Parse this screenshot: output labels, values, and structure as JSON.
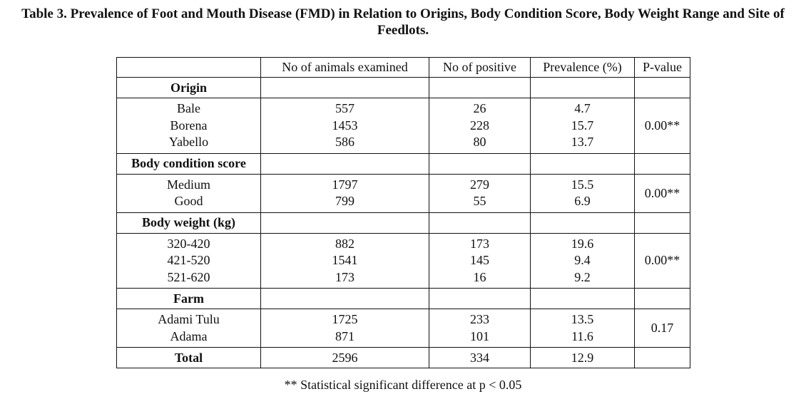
{
  "caption": {
    "line1": "Table 3. Prevalence of Foot and Mouth Disease (FMD) in Relation to Origins, Body Condition Score, Body Weight Range and Site of",
    "line2": "Feedlots."
  },
  "header": {
    "blank": "",
    "col1": "No of animals examined",
    "col2": "No of positive",
    "col3": "Prevalence (%)",
    "col4": "P-value"
  },
  "origin": {
    "title": "Origin",
    "pvalue": "0.00**",
    "rows": [
      {
        "label": "Bale",
        "examined": "557",
        "positive": "26",
        "prevalence": "4.7"
      },
      {
        "label": "Borena",
        "examined": "1453",
        "positive": "228",
        "prevalence": "15.7"
      },
      {
        "label": "Yabello",
        "examined": "586",
        "positive": "80",
        "prevalence": "13.7"
      }
    ]
  },
  "bcs": {
    "title": "Body condition score",
    "pvalue": "0.00**",
    "rows": [
      {
        "label": "Medium",
        "examined": "1797",
        "positive": "279",
        "prevalence": "15.5"
      },
      {
        "label": "Good",
        "examined": "799",
        "positive": "55",
        "prevalence": "6.9"
      }
    ]
  },
  "weight": {
    "title": "Body weight (kg)",
    "pvalue": "0.00**",
    "rows": [
      {
        "label": "320-420",
        "examined": "882",
        "positive": "173",
        "prevalence": "19.6"
      },
      {
        "label": "421-520",
        "examined": "1541",
        "positive": "145",
        "prevalence": "9.4"
      },
      {
        "label": "521-620",
        "examined": "173",
        "positive": "16",
        "prevalence": "9.2"
      }
    ]
  },
  "farm": {
    "title": "Farm",
    "pvalue": "0.17",
    "rows": [
      {
        "label": "Adami Tulu",
        "examined": "1725",
        "positive": "233",
        "prevalence": "13.5"
      },
      {
        "label": "Adama",
        "examined": "871",
        "positive": "101",
        "prevalence": "11.6"
      }
    ]
  },
  "total": {
    "label": "Total",
    "examined": "2596",
    "positive": "334",
    "prevalence": "12.9",
    "pvalue": ""
  },
  "footnote": "** Statistical significant difference at p < 0.05"
}
